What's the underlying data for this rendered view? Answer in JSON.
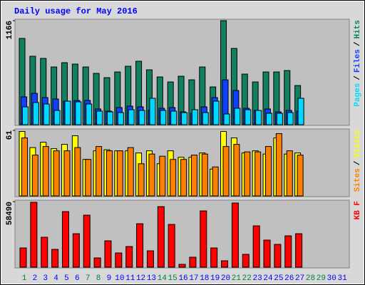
{
  "chart_data": [
    {
      "type": "bar",
      "title": "Daily usage for May 2016",
      "ylim": [
        0,
        1166
      ],
      "yticks": [
        1166
      ],
      "legend_separator": "/",
      "series": [
        {
          "name": "Hits",
          "color": "#108060",
          "values": [
            967,
            767,
            743,
            647,
            695,
            679,
            647,
            575,
            527,
            591,
            655,
            711,
            615,
            535,
            479,
            543,
            503,
            647,
            423,
            1166,
            855,
            567,
            479,
            591,
            591,
            607,
            439,
            null,
            null,
            null,
            null
          ]
        },
        {
          "name": "Files",
          "color": "#1040ff",
          "values": [
            312,
            351,
            304,
            288,
            264,
            272,
            272,
            176,
            152,
            192,
            208,
            200,
            160,
            184,
            192,
            144,
            128,
            200,
            304,
            503,
            383,
            184,
            160,
            176,
            144,
            160,
            152,
            null,
            null,
            null,
            null
          ]
        },
        {
          "name": "Pages",
          "color": "#00d8ff",
          "values": [
            200,
            248,
            232,
            160,
            264,
            256,
            232,
            152,
            144,
            136,
            168,
            160,
            296,
            160,
            152,
            136,
            168,
            136,
            264,
            120,
            184,
            168,
            160,
            128,
            128,
            136,
            296,
            null,
            null,
            null,
            null
          ]
        }
      ]
    },
    {
      "type": "bar",
      "ylim": [
        0,
        61
      ],
      "yticks": [
        61
      ],
      "legend_separator": "/",
      "series": [
        {
          "name": "Visits",
          "color": "#ffff00",
          "values": [
            60,
            45,
            50,
            44,
            48,
            56,
            34,
            42,
            43,
            42,
            42,
            40,
            42,
            30,
            42,
            36,
            36,
            40,
            25,
            60,
            54,
            40,
            42,
            39,
            54,
            39,
            40,
            null,
            null,
            null,
            null
          ]
        },
        {
          "name": "Sites",
          "color": "#ff8000",
          "values": [
            54,
            38,
            46,
            42,
            42,
            45,
            34,
            46,
            42,
            42,
            45,
            30,
            39,
            37,
            34,
            34,
            38,
            39,
            27,
            46,
            48,
            41,
            41,
            46,
            58,
            42,
            38,
            null,
            null,
            null,
            null
          ]
        }
      ]
    },
    {
      "type": "bar",
      "ylim": [
        0,
        58490
      ],
      "yticks": [
        58490
      ],
      "categories": [
        1,
        2,
        3,
        4,
        5,
        6,
        7,
        8,
        9,
        10,
        11,
        12,
        13,
        14,
        15,
        16,
        17,
        18,
        19,
        20,
        21,
        22,
        23,
        24,
        25,
        26,
        27,
        28,
        29,
        30,
        31
      ],
      "category_colors": [
        "#008040",
        "#0000ff",
        "#0000ff",
        "#0000ff",
        "#0000ff",
        "#0000ff",
        "#008040",
        "#008040",
        "#0000ff",
        "#0000ff",
        "#0000ff",
        "#0000ff",
        "#0000ff",
        "#008040",
        "#008040",
        "#0000ff",
        "#0000ff",
        "#0000ff",
        "#0000ff",
        "#0000ff",
        "#008040",
        "#008040",
        "#0000ff",
        "#0000ff",
        "#0000ff",
        "#0000ff",
        "#0000ff",
        "#008040",
        "#008040",
        "#0000ff",
        "#0000ff"
      ],
      "series": [
        {
          "name": "KB F",
          "color": "#ff0000",
          "values": [
            17166,
            57858,
            26703,
            15894,
            49590,
            29882,
            46413,
            8265,
            23524,
            12716,
            18438,
            38783,
            14623,
            54041,
            38148,
            2543,
            8901,
            50228,
            17166,
            5722,
            57222,
            11444,
            36876,
            24160,
            20345,
            27975,
            29882,
            null,
            null,
            null,
            null
          ]
        }
      ]
    }
  ]
}
